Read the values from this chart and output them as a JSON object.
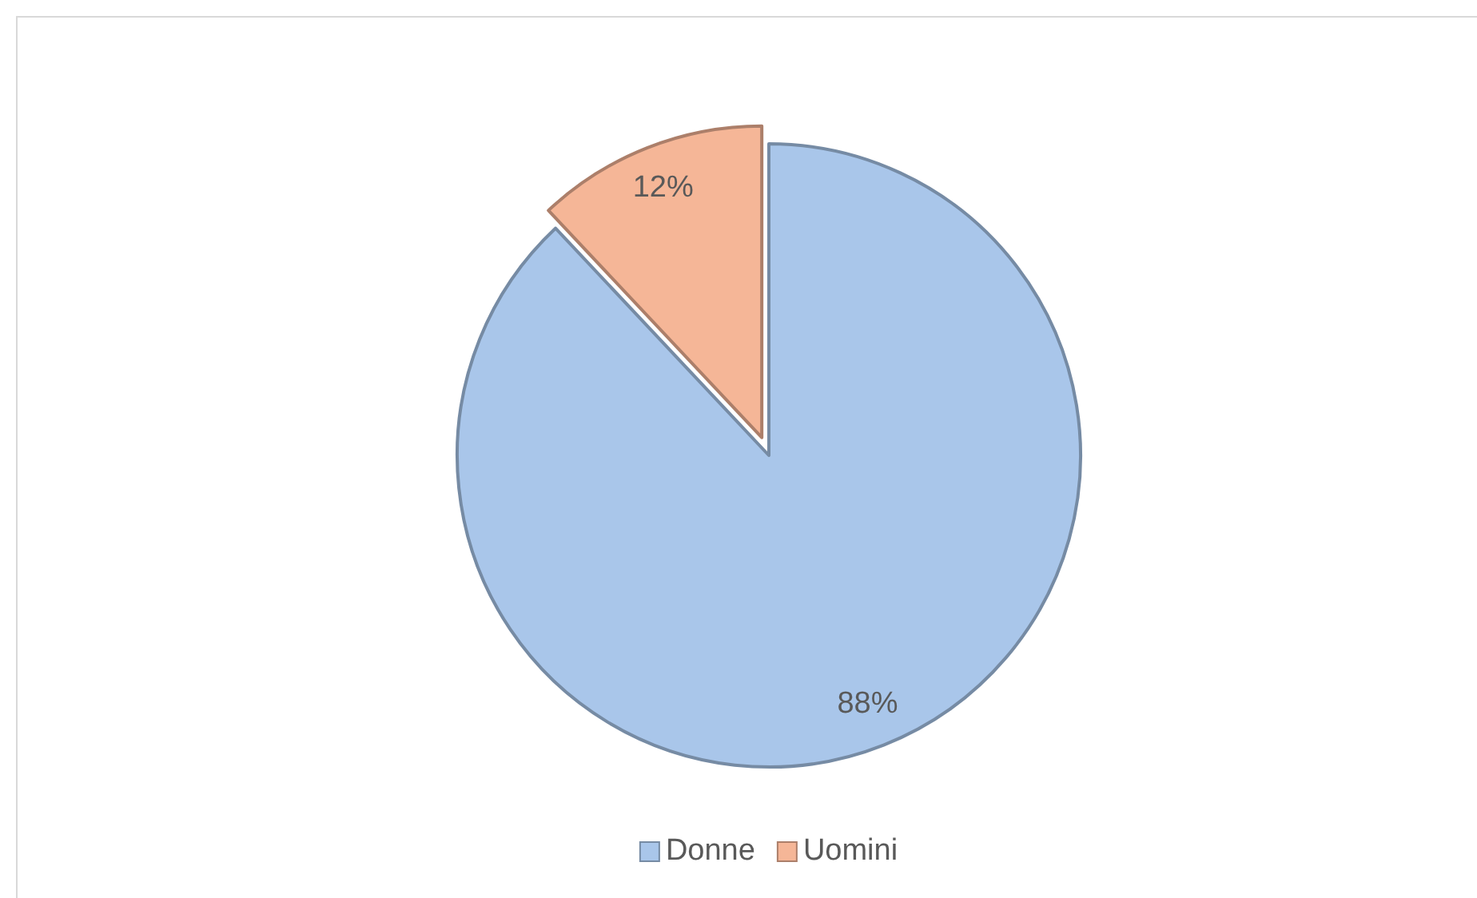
{
  "chart_data": {
    "type": "pie",
    "categories": [
      "Donne",
      "Uomini"
    ],
    "values": [
      88,
      12
    ],
    "colors": [
      "#a9c6ea",
      "#f5b697"
    ],
    "value_labels": [
      "88%",
      "12%"
    ],
    "legend": "bottom"
  }
}
